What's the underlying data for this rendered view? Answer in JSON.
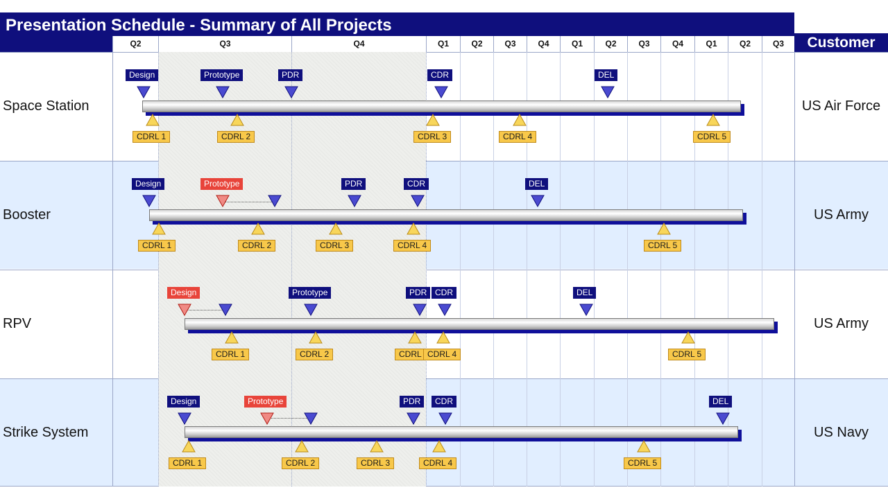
{
  "header": {
    "title": "Presentation Schedule - Summary of All Projects",
    "customer_label": "Customer"
  },
  "quarters": [
    "Q2",
    "Q3",
    "Q4",
    "Q1",
    "Q2",
    "Q3",
    "Q4",
    "Q1",
    "Q2",
    "Q3",
    "Q4",
    "Q1",
    "Q2",
    "Q3"
  ],
  "colors": {
    "navy": "#0f0f7d",
    "red": "#e8443a",
    "yellow": "#f8c84a",
    "row_alt": "#e1eeff",
    "shade": "#eeefec"
  },
  "projects": [
    {
      "name": "Space Station",
      "customer": "US Air Force",
      "milestones": [
        {
          "label": "Design",
          "style": "navy"
        },
        {
          "label": "Prototype",
          "style": "navy"
        },
        {
          "label": "PDR",
          "style": "navy"
        },
        {
          "label": "CDR",
          "style": "navy"
        },
        {
          "label": "DEL",
          "style": "navy"
        }
      ],
      "deliverables": [
        "CDRL 1",
        "CDRL 2",
        "CDRL 3",
        "CDRL 4",
        "CDRL 5"
      ]
    },
    {
      "name": "Booster",
      "customer": "US Army",
      "milestones": [
        {
          "label": "Design",
          "style": "navy"
        },
        {
          "label": "Prototype",
          "style": "red"
        },
        {
          "label": "PDR",
          "style": "navy"
        },
        {
          "label": "CDR",
          "style": "navy"
        },
        {
          "label": "DEL",
          "style": "navy"
        }
      ],
      "deliverables": [
        "CDRL 1",
        "CDRL 2",
        "CDRL 3",
        "CDRL 4",
        "CDRL 5"
      ]
    },
    {
      "name": "RPV",
      "customer": "US Army",
      "milestones": [
        {
          "label": "Design",
          "style": "red"
        },
        {
          "label": "Prototype",
          "style": "navy"
        },
        {
          "label": "PDR",
          "style": "navy"
        },
        {
          "label": "CDR",
          "style": "navy"
        },
        {
          "label": "DEL",
          "style": "navy"
        }
      ],
      "deliverables": [
        "CDRL 1",
        "CDRL 2",
        "CDRL 3",
        "CDRL 4",
        "CDRL 5"
      ]
    },
    {
      "name": "Strike System",
      "customer": "US Navy",
      "milestones": [
        {
          "label": "Design",
          "style": "navy"
        },
        {
          "label": "Prototype",
          "style": "red"
        },
        {
          "label": "PDR",
          "style": "navy"
        },
        {
          "label": "CDR",
          "style": "navy"
        },
        {
          "label": "DEL",
          "style": "navy"
        }
      ],
      "deliverables": [
        "CDRL 1",
        "CDRL 2",
        "CDRL 3",
        "CDRL 4",
        "CDRL 5"
      ]
    }
  ]
}
